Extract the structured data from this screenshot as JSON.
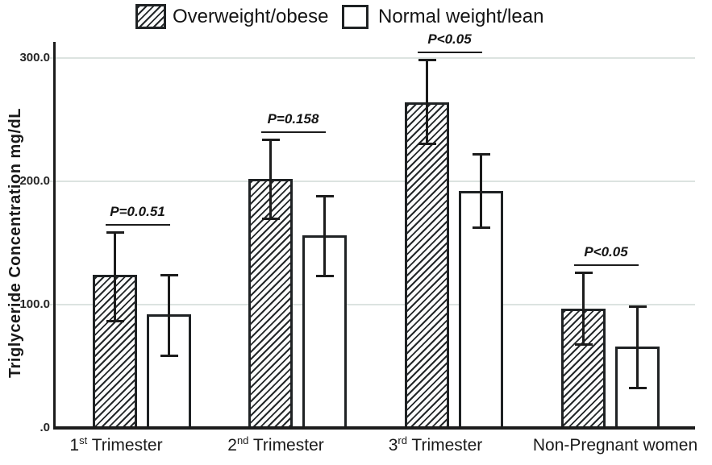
{
  "figure": {
    "background": "#ffffff",
    "text_color": "#1a1a1a",
    "grid_color": "#dce3e0",
    "bar_border_color": "#1f2224",
    "error_bar_color": "#1c1c1c"
  },
  "legend": {
    "items": [
      {
        "label": "Overweight/obese",
        "swatch": "hatched"
      },
      {
        "label": "Normal weight/lean",
        "swatch": "plain"
      }
    ]
  },
  "y_axis": {
    "title": "Triglyceride Concentration mg/dL",
    "ticks": [
      "300.0",
      "200.0",
      "100.0",
      ".0"
    ],
    "tick_values": [
      300,
      200,
      100,
      0
    ]
  },
  "chart_data": {
    "type": "bar",
    "title": "",
    "xlabel": "",
    "ylabel": "Triglyceride Concentration mg/dL",
    "ylim": [
      0,
      320
    ],
    "grid": "horizontal",
    "legend_position": "top",
    "categories": [
      {
        "prefix": "1",
        "sup": "st",
        "suffix": " Trimester"
      },
      {
        "prefix": "2",
        "sup": "nd",
        "suffix": " Trimester"
      },
      {
        "prefix": "3",
        "sup": "rd",
        "suffix": " Trimester"
      },
      {
        "prefix": "Non-Pregnant women",
        "sup": "",
        "suffix": ""
      }
    ],
    "series": [
      {
        "name": "Overweight/obese",
        "style": "hatched",
        "values": [
          124,
          202,
          264,
          97
        ],
        "ci_low": [
          86,
          169,
          230,
          67
        ],
        "ci_high": [
          159,
          234,
          299,
          126
        ]
      },
      {
        "name": "Normal weight/lean",
        "style": "plain",
        "values": [
          92,
          156,
          192,
          66
        ],
        "ci_low": [
          58,
          123,
          162,
          32
        ],
        "ci_high": [
          124,
          188,
          222,
          99
        ]
      }
    ],
    "p_values": [
      "P=0.0.51",
      "P=0.158",
      "P<0.05",
      "P<0.05"
    ]
  }
}
